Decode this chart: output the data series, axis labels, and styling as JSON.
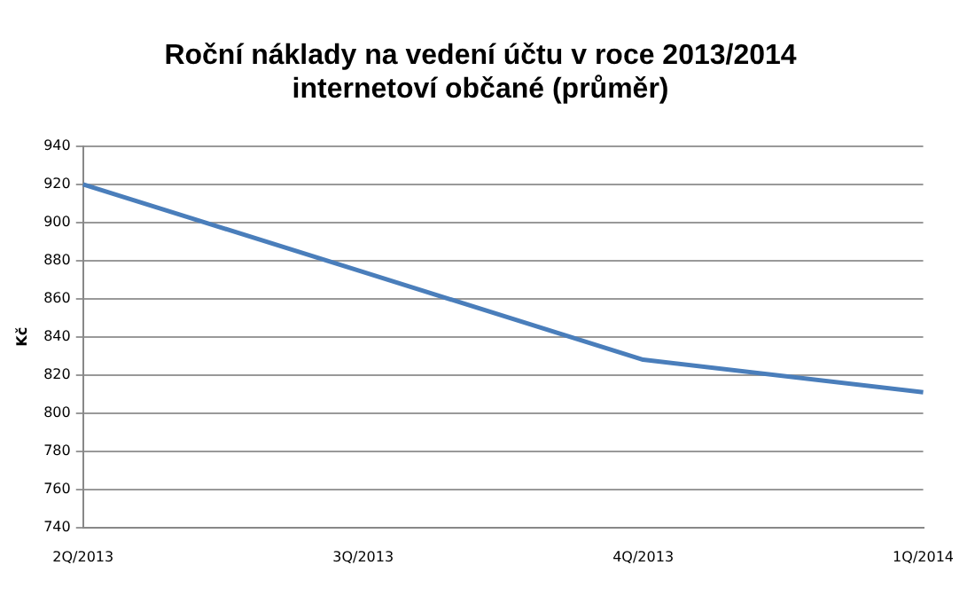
{
  "chart_data": {
    "type": "line",
    "title": [
      "Roční náklady na vedení účtu v roce 2013/2014",
      "internetoví občané (průměr)"
    ],
    "ylabel": "Kč",
    "categories": [
      "2Q/2013",
      "3Q/2013",
      "4Q/2013",
      "1Q/2014"
    ],
    "series": [
      {
        "color": "#4a7ebb",
        "values": [
          920,
          874,
          828,
          811
        ]
      }
    ],
    "ylim": [
      740,
      940
    ],
    "yticks": [
      740,
      760,
      780,
      800,
      820,
      840,
      860,
      880,
      900,
      920,
      940
    ],
    "grid": "y",
    "legend": false,
    "marker": "none",
    "line_style": "solid"
  }
}
